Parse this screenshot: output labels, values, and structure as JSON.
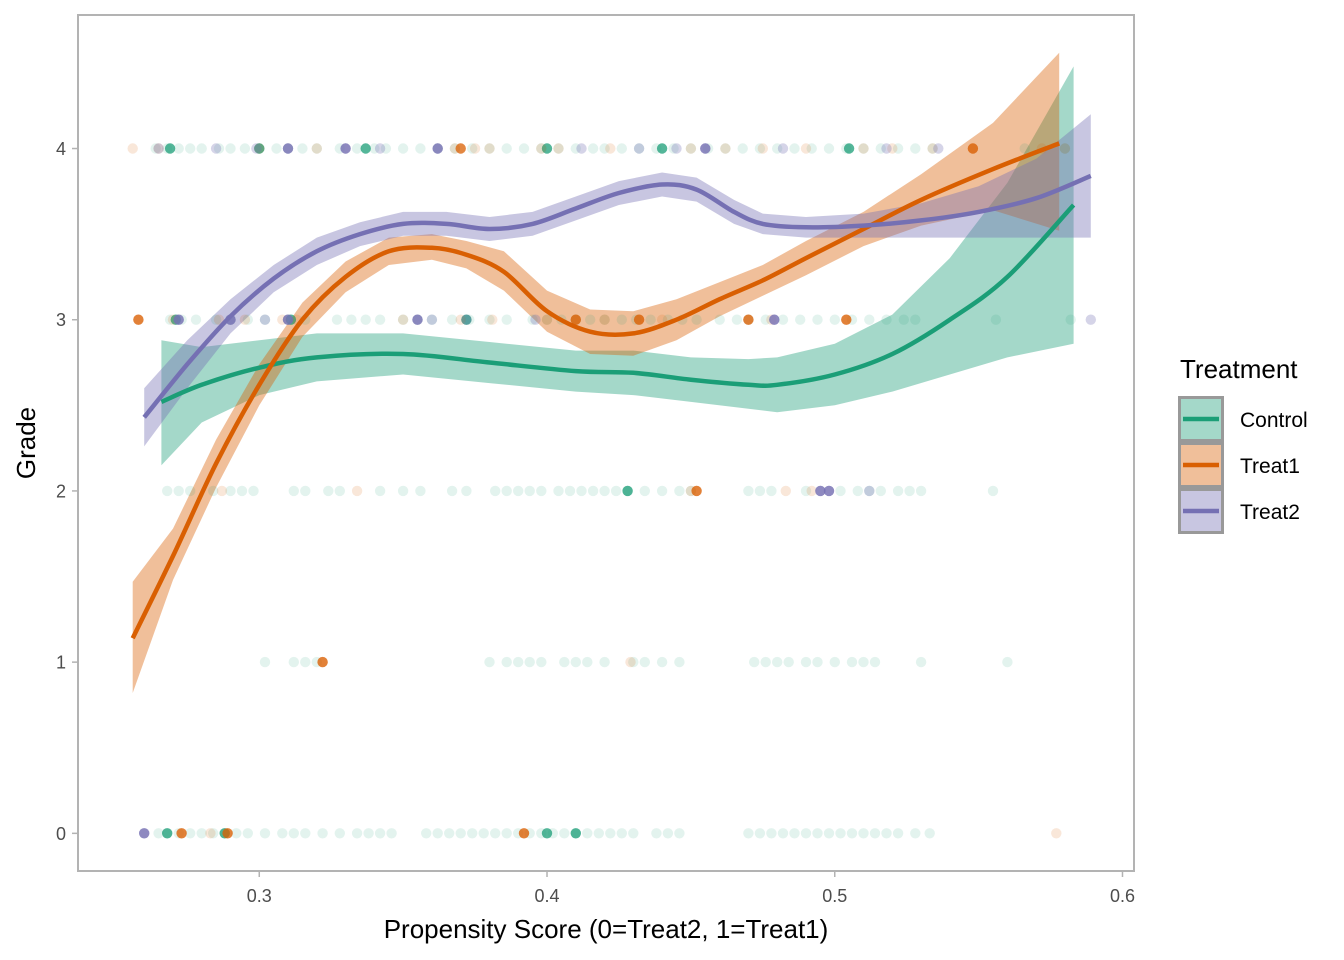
{
  "chart_data": {
    "type": "scatter",
    "title": "",
    "xlabel": "Propensity Score (0=Treat2, 1=Treat1)",
    "ylabel": "Grade",
    "xlim": [
      0.237,
      0.604
    ],
    "ylim": [
      -0.22,
      4.78
    ],
    "x_ticks": [
      "0.3",
      "0.4",
      "0.5",
      "0.6"
    ],
    "y_ticks": [
      "0",
      "1",
      "2",
      "3",
      "4"
    ],
    "grid": false,
    "legend": {
      "title": "Treatment",
      "position": "right"
    },
    "series": [
      {
        "name": "Control",
        "color": "#1B9E77",
        "point_alpha": 0.12,
        "smooth": {
          "x": [
            0.266,
            0.28,
            0.3,
            0.32,
            0.35,
            0.38,
            0.41,
            0.43,
            0.45,
            0.47,
            0.48,
            0.5,
            0.52,
            0.54,
            0.56,
            0.583
          ],
          "y": [
            2.52,
            2.62,
            2.72,
            2.78,
            2.8,
            2.75,
            2.7,
            2.69,
            2.65,
            2.62,
            2.62,
            2.68,
            2.8,
            3.0,
            3.25,
            3.67
          ],
          "ci_lower": [
            2.15,
            2.4,
            2.56,
            2.64,
            2.68,
            2.63,
            2.58,
            2.56,
            2.52,
            2.48,
            2.46,
            2.5,
            2.58,
            2.68,
            2.78,
            2.86
          ],
          "ci_upper": [
            2.88,
            2.84,
            2.88,
            2.92,
            2.92,
            2.87,
            2.82,
            2.82,
            2.78,
            2.77,
            2.78,
            2.86,
            3.03,
            3.36,
            3.8,
            4.48
          ]
        },
        "points": {
          "0": [
            0.265,
            0.268,
            0.272,
            0.276,
            0.28,
            0.284,
            0.288,
            0.292,
            0.296,
            0.302,
            0.308,
            0.312,
            0.316,
            0.322,
            0.328,
            0.334,
            0.338,
            0.342,
            0.346,
            0.358,
            0.362,
            0.366,
            0.37,
            0.374,
            0.378,
            0.382,
            0.386,
            0.39,
            0.394,
            0.398,
            0.402,
            0.406,
            0.41,
            0.414,
            0.418,
            0.422,
            0.426,
            0.43,
            0.438,
            0.442,
            0.446,
            0.47,
            0.474,
            0.478,
            0.482,
            0.486,
            0.49,
            0.494,
            0.498,
            0.502,
            0.506,
            0.51,
            0.514,
            0.518,
            0.522,
            0.528,
            0.533
          ],
          "1": [
            0.302,
            0.312,
            0.316,
            0.32,
            0.38,
            0.386,
            0.39,
            0.394,
            0.398,
            0.406,
            0.41,
            0.414,
            0.42,
            0.43,
            0.434,
            0.44,
            0.446,
            0.472,
            0.476,
            0.48,
            0.484,
            0.49,
            0.494,
            0.5,
            0.506,
            0.51,
            0.514,
            0.53,
            0.56
          ],
          "2": [
            0.268,
            0.272,
            0.276,
            0.284,
            0.29,
            0.294,
            0.298,
            0.312,
            0.316,
            0.324,
            0.328,
            0.342,
            0.35,
            0.356,
            0.367,
            0.372,
            0.382,
            0.386,
            0.39,
            0.394,
            0.398,
            0.404,
            0.408,
            0.412,
            0.416,
            0.42,
            0.424,
            0.428,
            0.434,
            0.44,
            0.446,
            0.45,
            0.47,
            0.474,
            0.478,
            0.49,
            0.502,
            0.508,
            0.512,
            0.516,
            0.522,
            0.526,
            0.53,
            0.555
          ],
          "3": [
            0.269,
            0.273,
            0.278,
            0.285,
            0.29,
            0.296,
            0.302,
            0.31,
            0.316,
            0.327,
            0.332,
            0.337,
            0.342,
            0.35,
            0.355,
            0.36,
            0.367,
            0.373,
            0.38,
            0.386,
            0.395,
            0.4,
            0.405,
            0.41,
            0.415,
            0.42,
            0.426,
            0.431,
            0.436,
            0.442,
            0.447,
            0.452,
            0.46,
            0.466,
            0.47,
            0.476,
            0.482,
            0.488,
            0.494,
            0.5,
            0.506,
            0.512,
            0.518,
            0.524,
            0.528,
            0.556,
            0.582
          ],
          "4": [
            0.264,
            0.268,
            0.272,
            0.276,
            0.28,
            0.286,
            0.29,
            0.295,
            0.3,
            0.306,
            0.31,
            0.315,
            0.32,
            0.328,
            0.334,
            0.34,
            0.344,
            0.35,
            0.356,
            0.362,
            0.368,
            0.374,
            0.38,
            0.386,
            0.392,
            0.398,
            0.404,
            0.41,
            0.416,
            0.42,
            0.426,
            0.432,
            0.438,
            0.444,
            0.45,
            0.456,
            0.462,
            0.468,
            0.474,
            0.48,
            0.486,
            0.492,
            0.498,
            0.504,
            0.51,
            0.516,
            0.522,
            0.528,
            0.534,
            0.566,
            0.58
          ]
        },
        "points_dark": {
          "0": [
            0.268,
            0.288,
            0.4,
            0.41
          ],
          "1": [],
          "2": [
            0.428
          ],
          "3": [
            0.271,
            0.311,
            0.372
          ],
          "4": [
            0.269,
            0.3,
            0.337,
            0.4,
            0.44,
            0.505
          ]
        }
      },
      {
        "name": "Treat1",
        "color": "#D95F02",
        "point_alpha": 0.15,
        "smooth": {
          "x": [
            0.256,
            0.27,
            0.285,
            0.3,
            0.315,
            0.33,
            0.345,
            0.36,
            0.372,
            0.385,
            0.4,
            0.415,
            0.43,
            0.445,
            0.46,
            0.475,
            0.49,
            0.51,
            0.53,
            0.555,
            0.578
          ],
          "y": [
            1.14,
            1.62,
            2.16,
            2.62,
            3.0,
            3.25,
            3.4,
            3.42,
            3.38,
            3.28,
            3.05,
            2.93,
            2.92,
            3.0,
            3.12,
            3.23,
            3.36,
            3.53,
            3.7,
            3.88,
            4.03
          ],
          "ci_lower": [
            0.82,
            1.48,
            2.02,
            2.5,
            2.9,
            3.16,
            3.32,
            3.35,
            3.3,
            3.17,
            2.93,
            2.8,
            2.79,
            2.88,
            3.02,
            3.14,
            3.26,
            3.43,
            3.55,
            3.64,
            3.52
          ],
          "ci_upper": [
            1.47,
            1.78,
            2.3,
            2.74,
            3.1,
            3.34,
            3.48,
            3.5,
            3.46,
            3.4,
            3.17,
            3.06,
            3.05,
            3.12,
            3.22,
            3.32,
            3.46,
            3.63,
            3.85,
            4.15,
            4.56
          ]
        },
        "points": {
          "0": [
            0.273,
            0.283,
            0.289,
            0.392,
            0.577
          ],
          "1": [
            0.322,
            0.429
          ],
          "2": [
            0.287,
            0.334,
            0.45,
            0.452,
            0.483,
            0.492
          ],
          "3": [
            0.258,
            0.27,
            0.286,
            0.295,
            0.308,
            0.313,
            0.35,
            0.37,
            0.381,
            0.4,
            0.41,
            0.42,
            0.432,
            0.44,
            0.47,
            0.478,
            0.504
          ],
          "4": [
            0.256,
            0.265,
            0.3,
            0.32,
            0.368,
            0.375,
            0.38,
            0.398,
            0.404,
            0.422,
            0.45,
            0.462,
            0.475,
            0.49,
            0.51,
            0.52,
            0.534,
            0.548,
            0.572,
            0.58
          ]
        },
        "points_dark": {
          "0": [
            0.273,
            0.289,
            0.392
          ],
          "1": [
            0.322
          ],
          "2": [
            0.452
          ],
          "3": [
            0.258,
            0.41,
            0.432,
            0.47,
            0.504
          ],
          "4": [
            0.37,
            0.548
          ]
        }
      },
      {
        "name": "Treat2",
        "color": "#7570B3",
        "point_alpha": 0.3,
        "smooth": {
          "x": [
            0.26,
            0.275,
            0.29,
            0.305,
            0.32,
            0.335,
            0.35,
            0.365,
            0.38,
            0.395,
            0.41,
            0.425,
            0.44,
            0.452,
            0.465,
            0.475,
            0.49,
            0.51,
            0.53,
            0.55,
            0.57,
            0.589
          ],
          "y": [
            2.43,
            2.74,
            3.02,
            3.24,
            3.4,
            3.5,
            3.56,
            3.56,
            3.53,
            3.56,
            3.65,
            3.74,
            3.79,
            3.76,
            3.63,
            3.56,
            3.54,
            3.55,
            3.58,
            3.63,
            3.71,
            3.84
          ],
          "ci_lower": [
            2.26,
            2.6,
            2.92,
            3.16,
            3.32,
            3.43,
            3.49,
            3.49,
            3.46,
            3.49,
            3.58,
            3.67,
            3.72,
            3.69,
            3.56,
            3.5,
            3.48,
            3.48,
            3.48,
            3.48,
            3.48,
            3.48
          ],
          "ci_upper": [
            2.6,
            2.88,
            3.12,
            3.32,
            3.48,
            3.57,
            3.63,
            3.63,
            3.6,
            3.63,
            3.72,
            3.81,
            3.86,
            3.83,
            3.7,
            3.62,
            3.6,
            3.62,
            3.68,
            3.78,
            3.94,
            4.2
          ]
        },
        "points": {
          "0": [
            0.26
          ],
          "1": [],
          "2": [
            0.495,
            0.498,
            0.512
          ],
          "3": [
            0.272,
            0.29,
            0.302,
            0.31,
            0.355,
            0.36,
            0.372,
            0.396,
            0.479,
            0.589
          ],
          "4": [
            0.265,
            0.285,
            0.299,
            0.31,
            0.33,
            0.342,
            0.362,
            0.412,
            0.432,
            0.445,
            0.455,
            0.482,
            0.518,
            0.536
          ]
        },
        "points_dark": {
          "0": [
            0.26
          ],
          "1": [],
          "2": [
            0.495,
            0.498
          ],
          "3": [
            0.272,
            0.29,
            0.31,
            0.355,
            0.479
          ],
          "4": [
            0.31,
            0.33,
            0.362,
            0.455
          ]
        }
      }
    ]
  }
}
